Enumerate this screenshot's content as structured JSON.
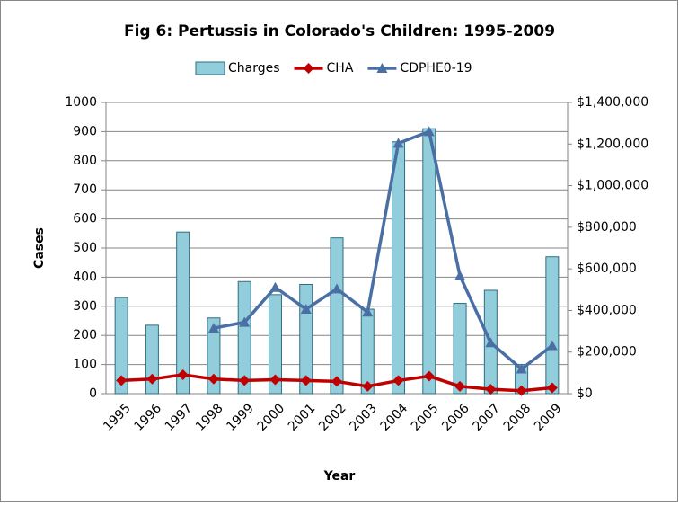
{
  "chart_data": {
    "type": "combo",
    "title": "Fig 6: Pertussis in Colorado's Children: 1995-2009",
    "x_label": "Year",
    "y_label": "Cases",
    "categories": [
      "1995",
      "1996",
      "1997",
      "1998",
      "1999",
      "2000",
      "2001",
      "2002",
      "2003",
      "2004",
      "2005",
      "2006",
      "2007",
      "2008",
      "2009"
    ],
    "series": [
      {
        "name": "Charges",
        "type": "bar",
        "axis": "y2",
        "color": "#92cddc",
        "values": [
          462000,
          329000,
          777000,
          364000,
          539000,
          476000,
          525000,
          749000,
          406000,
          1211000,
          1274000,
          434000,
          497000,
          140000,
          658000
        ]
      },
      {
        "name": "CHA",
        "type": "line",
        "marker": "diamond",
        "color": "#c00000",
        "values": [
          45,
          50,
          65,
          50,
          45,
          48,
          45,
          42,
          25,
          45,
          60,
          25,
          15,
          10,
          20
        ]
      },
      {
        "name": "CDPHE0-19",
        "type": "line",
        "marker": "triangle",
        "color": "#4a6fa5",
        "values": [
          null,
          null,
          null,
          225,
          245,
          365,
          290,
          360,
          280,
          860,
          900,
          405,
          175,
          85,
          165
        ]
      }
    ],
    "ylim": [
      0,
      1000
    ],
    "yticks": [
      0,
      100,
      200,
      300,
      400,
      500,
      600,
      700,
      800,
      900,
      1000
    ],
    "y2lim": [
      0,
      1400000
    ],
    "y2ticks": [
      {
        "value": 0,
        "label": "$0"
      },
      {
        "value": 200000,
        "label": "$200,000"
      },
      {
        "value": 400000,
        "label": "$400,000"
      },
      {
        "value": 600000,
        "label": "$600,000"
      },
      {
        "value": 800000,
        "label": "$800,000"
      },
      {
        "value": 1000000,
        "label": "$1,000,000"
      },
      {
        "value": 1200000,
        "label": "$1,200,000"
      },
      {
        "value": 1400000,
        "label": "$1,400,000"
      }
    ],
    "grid": true,
    "legend": "top"
  }
}
